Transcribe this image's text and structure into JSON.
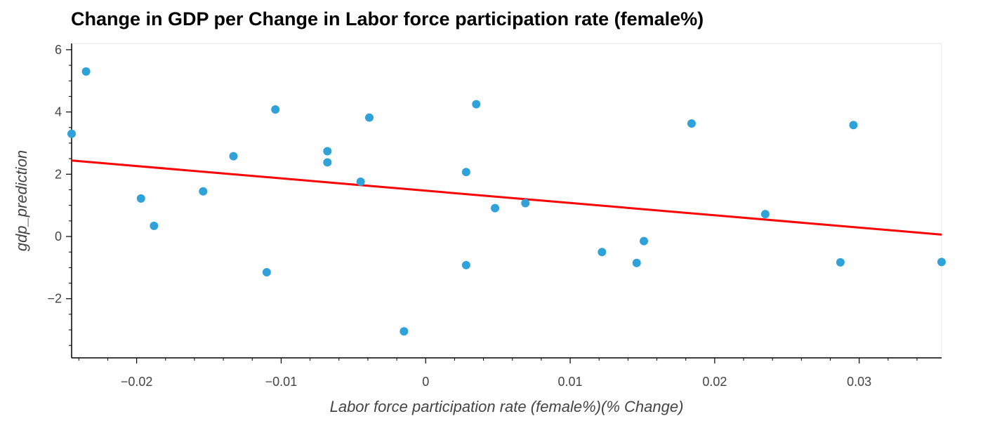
{
  "chart_data": {
    "type": "scatter",
    "title": "Change in GDP per Change in Labor force participation rate (female%)",
    "xlabel": "Labor force participation rate (female%)(% Change)",
    "ylabel": "gdp_prediction",
    "xlim": [
      -0.0245,
      0.0357
    ],
    "ylim": [
      -3.9,
      6.2
    ],
    "x_ticks": [
      -0.02,
      -0.01,
      0,
      0.01,
      0.02,
      0.03
    ],
    "x_tick_labels": [
      "−0.02",
      "−0.01",
      "0",
      "0.01",
      "0.02",
      "0.03"
    ],
    "y_ticks": [
      -2,
      0,
      2,
      4,
      6
    ],
    "y_tick_labels": [
      "−2",
      "0",
      "2",
      "4",
      "6"
    ],
    "grid": false,
    "points": [
      {
        "x": -0.0245,
        "y": 3.3
      },
      {
        "x": -0.0235,
        "y": 5.3
      },
      {
        "x": -0.0197,
        "y": 1.22
      },
      {
        "x": -0.0188,
        "y": 0.34
      },
      {
        "x": -0.0154,
        "y": 1.45
      },
      {
        "x": -0.0133,
        "y": 2.58
      },
      {
        "x": -0.011,
        "y": -1.15
      },
      {
        "x": -0.0104,
        "y": 4.08
      },
      {
        "x": -0.0068,
        "y": 2.74
      },
      {
        "x": -0.0068,
        "y": 2.38
      },
      {
        "x": -0.0045,
        "y": 1.76
      },
      {
        "x": -0.0039,
        "y": 3.82
      },
      {
        "x": -0.0015,
        "y": -3.05
      },
      {
        "x": 0.0028,
        "y": 2.07
      },
      {
        "x": 0.0028,
        "y": -0.92
      },
      {
        "x": 0.0035,
        "y": 4.25
      },
      {
        "x": 0.0048,
        "y": 0.91
      },
      {
        "x": 0.0069,
        "y": 1.07
      },
      {
        "x": 0.0122,
        "y": -0.5
      },
      {
        "x": 0.0146,
        "y": -0.85
      },
      {
        "x": 0.0151,
        "y": -0.15
      },
      {
        "x": 0.0184,
        "y": 3.63
      },
      {
        "x": 0.0235,
        "y": 0.72
      },
      {
        "x": 0.0287,
        "y": -0.83
      },
      {
        "x": 0.0296,
        "y": 3.58
      },
      {
        "x": 0.0357,
        "y": -0.82
      }
    ],
    "fit_line": {
      "x": [
        -0.0245,
        0.0357
      ],
      "y": [
        2.44,
        0.06
      ]
    },
    "colors": {
      "points": "#30a2da",
      "fit_line": "#ff0000",
      "frame": "#e5e5e5"
    }
  }
}
